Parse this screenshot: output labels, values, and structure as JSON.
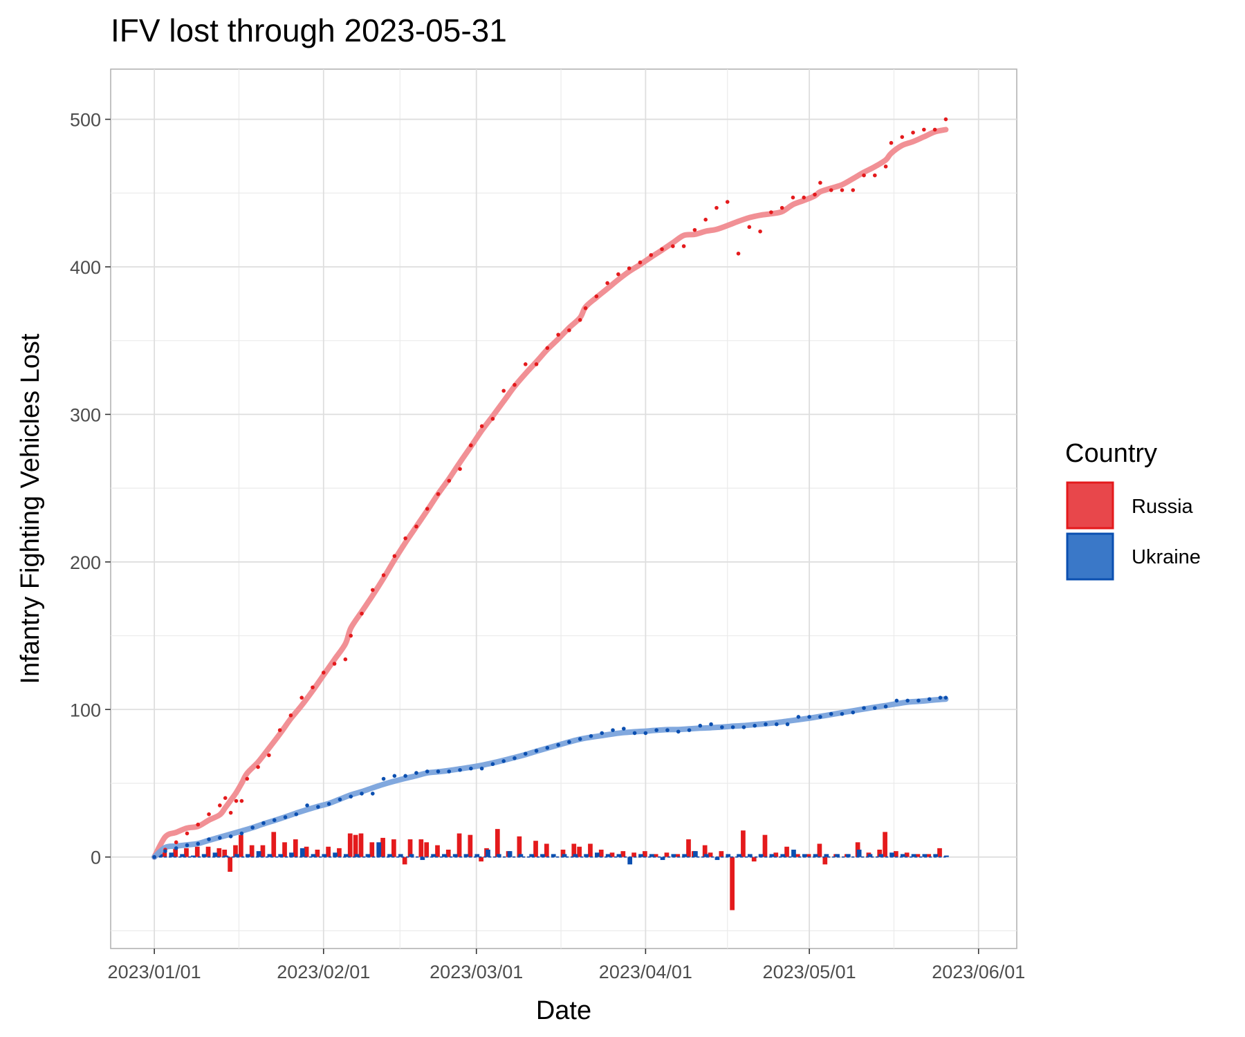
{
  "chart_data": {
    "type": "line",
    "title": "IFV lost through 2023-05-31",
    "xlabel": "Date",
    "ylabel": "Infantry Fighting Vehicles Lost",
    "x_ticks": [
      "2023/01/01",
      "2023/02/01",
      "2023/03/01",
      "2023/04/01",
      "2023/05/01",
      "2023/06/01"
    ],
    "x_tick_days": [
      0,
      31,
      59,
      90,
      120,
      151
    ],
    "y_ticks": [
      0,
      100,
      200,
      300,
      400,
      500
    ],
    "xlim_days": [
      -8,
      158
    ],
    "ylim": [
      -62,
      534
    ],
    "grid": true,
    "legend": {
      "title": "Country",
      "position": "right",
      "entries": [
        "Russia",
        "Ukraine"
      ]
    },
    "series": [
      {
        "name": "Russia",
        "color": "#e41a1c",
        "smooth_color": "#f08a8f",
        "cumulative": [
          [
            0,
            0
          ],
          [
            2,
            5
          ],
          [
            4,
            10
          ],
          [
            6,
            16
          ],
          [
            8,
            22
          ],
          [
            10,
            29
          ],
          [
            12,
            35
          ],
          [
            13,
            40
          ],
          [
            14,
            30
          ],
          [
            15,
            38
          ],
          [
            16,
            38
          ],
          [
            17,
            53
          ],
          [
            19,
            61
          ],
          [
            21,
            69
          ],
          [
            23,
            86
          ],
          [
            25,
            96
          ],
          [
            27,
            108
          ],
          [
            29,
            115
          ],
          [
            31,
            125
          ],
          [
            33,
            131
          ],
          [
            35,
            134
          ],
          [
            36,
            150
          ],
          [
            38,
            165
          ],
          [
            40,
            181
          ],
          [
            42,
            191
          ],
          [
            44,
            204
          ],
          [
            46,
            216
          ],
          [
            48,
            224
          ],
          [
            50,
            236
          ],
          [
            52,
            246
          ],
          [
            54,
            255
          ],
          [
            56,
            263
          ],
          [
            58,
            279
          ],
          [
            60,
            292
          ],
          [
            62,
            297
          ],
          [
            64,
            316
          ],
          [
            66,
            320
          ],
          [
            68,
            334
          ],
          [
            70,
            334
          ],
          [
            72,
            345
          ],
          [
            74,
            354
          ],
          [
            76,
            357
          ],
          [
            78,
            364
          ],
          [
            79,
            372
          ],
          [
            81,
            380
          ],
          [
            83,
            389
          ],
          [
            85,
            395
          ],
          [
            87,
            399
          ],
          [
            89,
            403
          ],
          [
            91,
            408
          ],
          [
            93,
            412
          ],
          [
            95,
            414
          ],
          [
            97,
            414
          ],
          [
            99,
            425
          ],
          [
            101,
            432
          ],
          [
            103,
            440
          ],
          [
            105,
            444
          ],
          [
            107,
            409
          ],
          [
            109,
            427
          ],
          [
            111,
            424
          ],
          [
            113,
            437
          ],
          [
            115,
            440
          ],
          [
            117,
            447
          ],
          [
            119,
            447
          ],
          [
            121,
            449
          ],
          [
            122,
            457
          ],
          [
            124,
            452
          ],
          [
            126,
            452
          ],
          [
            128,
            452
          ],
          [
            130,
            462
          ],
          [
            132,
            462
          ],
          [
            134,
            468
          ],
          [
            135,
            484
          ],
          [
            137,
            488
          ],
          [
            139,
            491
          ],
          [
            141,
            493
          ],
          [
            143,
            493
          ],
          [
            145,
            500
          ]
        ],
        "daily": [
          [
            1,
            5
          ],
          [
            2,
            5
          ],
          [
            4,
            6
          ],
          [
            6,
            6
          ],
          [
            8,
            7
          ],
          [
            10,
            7
          ],
          [
            12,
            6
          ],
          [
            13,
            5
          ],
          [
            14,
            -10
          ],
          [
            15,
            8
          ],
          [
            16,
            15
          ],
          [
            18,
            8
          ],
          [
            20,
            8
          ],
          [
            22,
            17
          ],
          [
            24,
            10
          ],
          [
            26,
            12
          ],
          [
            28,
            7
          ],
          [
            30,
            5
          ],
          [
            32,
            7
          ],
          [
            34,
            6
          ],
          [
            36,
            16
          ],
          [
            37,
            15
          ],
          [
            38,
            16
          ],
          [
            40,
            10
          ],
          [
            42,
            13
          ],
          [
            44,
            12
          ],
          [
            46,
            -5
          ],
          [
            47,
            12
          ],
          [
            49,
            12
          ],
          [
            50,
            10
          ],
          [
            52,
            8
          ],
          [
            54,
            5
          ],
          [
            56,
            16
          ],
          [
            58,
            15
          ],
          [
            60,
            -3
          ],
          [
            61,
            6
          ],
          [
            63,
            19
          ],
          [
            65,
            4
          ],
          [
            67,
            14
          ],
          [
            70,
            11
          ],
          [
            72,
            9
          ],
          [
            75,
            5
          ],
          [
            77,
            9
          ],
          [
            78,
            7
          ],
          [
            80,
            9
          ],
          [
            82,
            5
          ],
          [
            84,
            3
          ],
          [
            86,
            4
          ],
          [
            88,
            3
          ],
          [
            90,
            4
          ],
          [
            92,
            2
          ],
          [
            94,
            3
          ],
          [
            96,
            2
          ],
          [
            98,
            12
          ],
          [
            99,
            4
          ],
          [
            101,
            8
          ],
          [
            102,
            3
          ],
          [
            104,
            4
          ],
          [
            106,
            -36
          ],
          [
            108,
            18
          ],
          [
            110,
            -3
          ],
          [
            112,
            15
          ],
          [
            114,
            3
          ],
          [
            116,
            7
          ],
          [
            118,
            2
          ],
          [
            120,
            2
          ],
          [
            122,
            9
          ],
          [
            123,
            -5
          ],
          [
            125,
            2
          ],
          [
            127,
            2
          ],
          [
            129,
            10
          ],
          [
            131,
            3
          ],
          [
            133,
            5
          ],
          [
            134,
            17
          ],
          [
            136,
            4
          ],
          [
            138,
            3
          ],
          [
            140,
            2
          ],
          [
            142,
            2
          ],
          [
            144,
            6
          ]
        ]
      },
      {
        "name": "Ukraine",
        "color": "#0b4fb0",
        "smooth_color": "#7aa3dc",
        "cumulative": [
          [
            0,
            0
          ],
          [
            2,
            4
          ],
          [
            4,
            6
          ],
          [
            6,
            8
          ],
          [
            8,
            9
          ],
          [
            10,
            12
          ],
          [
            12,
            13
          ],
          [
            14,
            14
          ],
          [
            16,
            16
          ],
          [
            18,
            20
          ],
          [
            20,
            23
          ],
          [
            22,
            25
          ],
          [
            24,
            27
          ],
          [
            26,
            29
          ],
          [
            28,
            35
          ],
          [
            30,
            34
          ],
          [
            32,
            36
          ],
          [
            34,
            39
          ],
          [
            36,
            41
          ],
          [
            38,
            43
          ],
          [
            40,
            43
          ],
          [
            42,
            53
          ],
          [
            44,
            55
          ],
          [
            46,
            55
          ],
          [
            48,
            57
          ],
          [
            50,
            58
          ],
          [
            52,
            58
          ],
          [
            54,
            58
          ],
          [
            56,
            59
          ],
          [
            58,
            60
          ],
          [
            60,
            60
          ],
          [
            62,
            63
          ],
          [
            64,
            65
          ],
          [
            66,
            67
          ],
          [
            68,
            70
          ],
          [
            70,
            72
          ],
          [
            72,
            74
          ],
          [
            74,
            76
          ],
          [
            76,
            78
          ],
          [
            78,
            80
          ],
          [
            80,
            82
          ],
          [
            82,
            84
          ],
          [
            84,
            86
          ],
          [
            86,
            87
          ],
          [
            88,
            84
          ],
          [
            90,
            84
          ],
          [
            92,
            86
          ],
          [
            94,
            86
          ],
          [
            96,
            85
          ],
          [
            98,
            86
          ],
          [
            100,
            89
          ],
          [
            102,
            90
          ],
          [
            104,
            88
          ],
          [
            106,
            88
          ],
          [
            108,
            88
          ],
          [
            110,
            89
          ],
          [
            112,
            90
          ],
          [
            114,
            90
          ],
          [
            116,
            90
          ],
          [
            118,
            95
          ],
          [
            120,
            95
          ],
          [
            122,
            95
          ],
          [
            124,
            97
          ],
          [
            126,
            97
          ],
          [
            128,
            98
          ],
          [
            130,
            101
          ],
          [
            132,
            101
          ],
          [
            134,
            102
          ],
          [
            136,
            106
          ],
          [
            138,
            106
          ],
          [
            140,
            106
          ],
          [
            142,
            107
          ],
          [
            144,
            108
          ],
          [
            145,
            108
          ]
        ],
        "daily": [
          [
            1,
            2
          ],
          [
            3,
            3
          ],
          [
            5,
            2
          ],
          [
            7,
            1
          ],
          [
            9,
            2
          ],
          [
            11,
            3
          ],
          [
            13,
            1
          ],
          [
            15,
            2
          ],
          [
            17,
            2
          ],
          [
            19,
            4
          ],
          [
            21,
            2
          ],
          [
            23,
            2
          ],
          [
            25,
            3
          ],
          [
            27,
            6
          ],
          [
            29,
            2
          ],
          [
            31,
            2
          ],
          [
            33,
            3
          ],
          [
            35,
            2
          ],
          [
            37,
            2
          ],
          [
            39,
            2
          ],
          [
            41,
            10
          ],
          [
            43,
            2
          ],
          [
            45,
            2
          ],
          [
            47,
            2
          ],
          [
            49,
            -2
          ],
          [
            51,
            2
          ],
          [
            53,
            2
          ],
          [
            55,
            2
          ],
          [
            57,
            2
          ],
          [
            59,
            2
          ],
          [
            61,
            5
          ],
          [
            63,
            2
          ],
          [
            65,
            4
          ],
          [
            67,
            2
          ],
          [
            69,
            2
          ],
          [
            71,
            2
          ],
          [
            73,
            2
          ],
          [
            75,
            2
          ],
          [
            77,
            2
          ],
          [
            79,
            2
          ],
          [
            81,
            3
          ],
          [
            83,
            2
          ],
          [
            85,
            2
          ],
          [
            87,
            -5
          ],
          [
            89,
            2
          ],
          [
            91,
            2
          ],
          [
            93,
            -2
          ],
          [
            95,
            2
          ],
          [
            97,
            2
          ],
          [
            99,
            4
          ],
          [
            101,
            2
          ],
          [
            103,
            -2
          ],
          [
            105,
            2
          ],
          [
            107,
            2
          ],
          [
            109,
            2
          ],
          [
            111,
            2
          ],
          [
            113,
            2
          ],
          [
            115,
            2
          ],
          [
            117,
            5
          ],
          [
            119,
            2
          ],
          [
            121,
            2
          ],
          [
            123,
            2
          ],
          [
            125,
            2
          ],
          [
            127,
            2
          ],
          [
            129,
            5
          ],
          [
            131,
            2
          ],
          [
            133,
            2
          ],
          [
            135,
            3
          ],
          [
            137,
            2
          ],
          [
            139,
            2
          ],
          [
            141,
            2
          ],
          [
            143,
            2
          ],
          [
            145,
            1
          ]
        ]
      }
    ]
  }
}
